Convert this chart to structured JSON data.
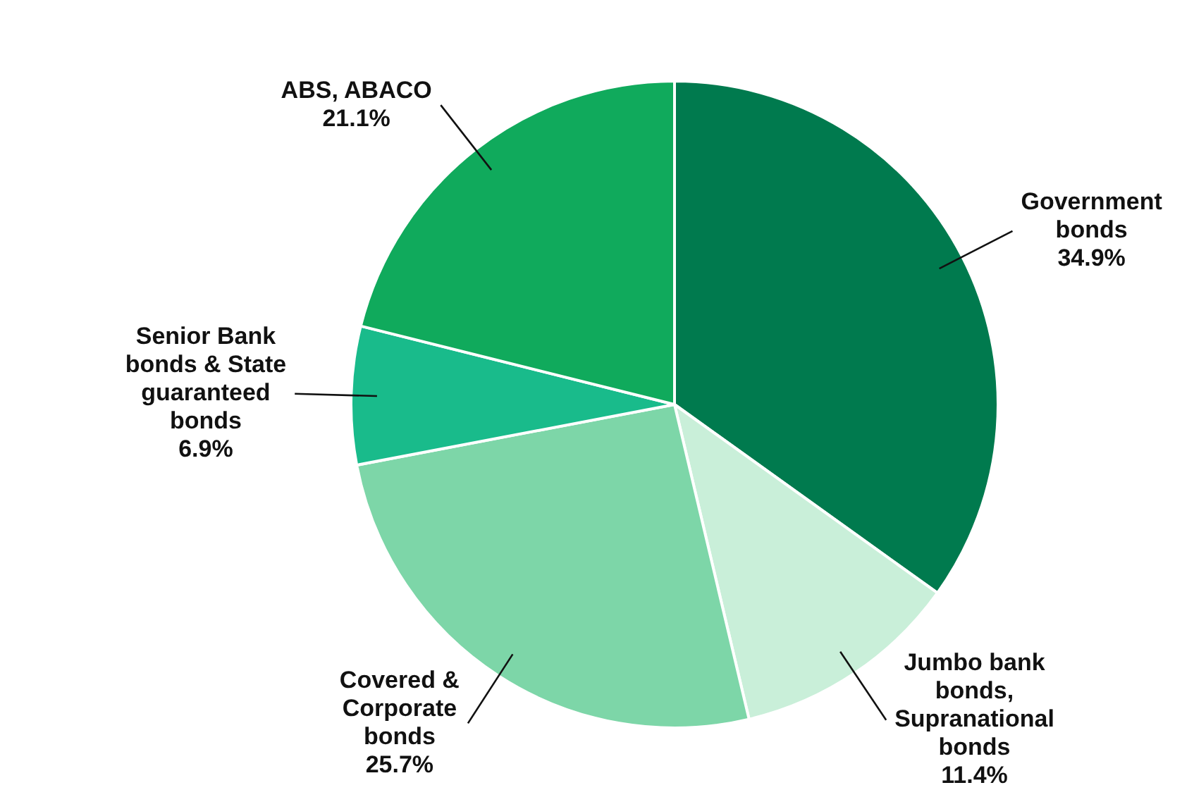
{
  "chart_data": {
    "type": "pie",
    "categories": [
      "Government bonds",
      "Jumbo bank bonds, Supranational bonds",
      "Covered & Corporate bonds",
      "Senior Bank bonds & State guaranteed bonds",
      "ABS, ABACO"
    ],
    "values": [
      34.9,
      11.4,
      25.7,
      6.9,
      21.1
    ],
    "value_labels": [
      "34.9%",
      "11.4%",
      "25.7%",
      "6.9%",
      "21.1%"
    ],
    "colors": [
      "#007a4e",
      "#c9efd9",
      "#7dd6a8",
      "#19bb8b",
      "#10aa5c"
    ],
    "legend": false
  }
}
